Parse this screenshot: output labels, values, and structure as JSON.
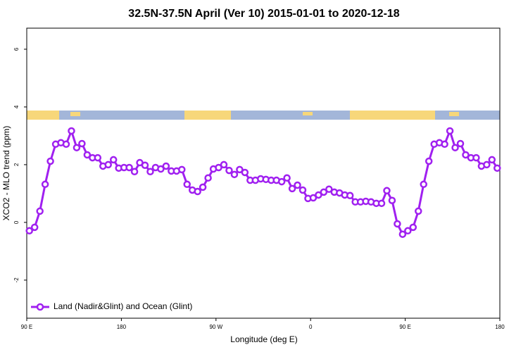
{
  "chart_data": {
    "type": "line",
    "title": "32.5N-37.5N April (Ver 10)   2015-01-01 to 2020-12-18",
    "x_label": "Longitude (deg E)",
    "y_label": "XCO2 - MLO trend (ppm)",
    "x": [
      92.5,
      97.5,
      102.5,
      107.5,
      112.5,
      117.5,
      122.5,
      127.5,
      132.5,
      137.5,
      142.5,
      147.5,
      152.5,
      157.5,
      162.5,
      167.5,
      172.5,
      177.5,
      182.5,
      187.5,
      192.5,
      197.5,
      202.5,
      207.5,
      212.5,
      217.5,
      222.5,
      227.5,
      232.5,
      237.5,
      242.5,
      247.5,
      252.5,
      257.5,
      262.5,
      267.5,
      272.5,
      277.5,
      282.5,
      287.5,
      292.5,
      297.5,
      302.5,
      307.5,
      312.5,
      317.5,
      322.5,
      327.5,
      332.5,
      337.5,
      342.5,
      347.5,
      352.5,
      357.5,
      362.5,
      367.5,
      372.5,
      377.5,
      382.5,
      387.5,
      392.5,
      397.5,
      402.5,
      407.5,
      412.5,
      417.5,
      422.5,
      427.5,
      432.5,
      437.5,
      442.5,
      447.5,
      452.5,
      457.5,
      462.5,
      467.5,
      472.5,
      477.5,
      482.5,
      487.5,
      492.5,
      497.5,
      502.5,
      507.5,
      512.5,
      517.5,
      522.5,
      527.5,
      532.5,
      537.5
    ],
    "series": [
      {
        "name": "Land (Nadir&Glint) and Ocean (Glint)",
        "color": "#a020f0",
        "values": [
          -0.29,
          -0.17,
          0.39,
          1.32,
          2.12,
          2.71,
          2.76,
          2.71,
          3.17,
          2.59,
          2.73,
          2.34,
          2.24,
          2.24,
          1.95,
          2.0,
          2.17,
          1.88,
          1.9,
          1.9,
          1.76,
          2.07,
          1.98,
          1.76,
          1.9,
          1.85,
          1.95,
          1.78,
          1.78,
          1.83,
          1.32,
          1.12,
          1.07,
          1.22,
          1.54,
          1.85,
          1.9,
          2.0,
          1.8,
          1.66,
          1.83,
          1.73,
          1.46,
          1.46,
          1.51,
          1.49,
          1.46,
          1.46,
          1.41,
          1.54,
          1.17,
          1.29,
          1.12,
          0.83,
          0.85,
          0.95,
          1.05,
          1.15,
          1.05,
          1.02,
          0.95,
          0.93,
          0.71,
          0.71,
          0.73,
          0.71,
          0.66,
          0.66,
          1.1,
          0.76,
          -0.05,
          -0.41,
          -0.29,
          -0.17,
          0.39,
          1.32,
          2.12,
          2.71,
          2.76,
          2.71,
          3.17,
          2.59,
          2.73,
          2.34,
          2.24,
          2.24,
          1.95,
          2.0,
          2.17,
          1.88
        ]
      }
    ],
    "xlim": [
      90,
      540
    ],
    "xticks": [
      {
        "value": 90,
        "label": "90 E"
      },
      180,
      {
        "value": 270,
        "label": "90 W"
      },
      {
        "value": 360,
        "label": "0"
      },
      {
        "value": 450,
        "label": "90 E"
      },
      180
    ],
    "ylim": [
      -3.32,
      6.73
    ],
    "yticks": [
      -2,
      0,
      2,
      4,
      6
    ],
    "legend": "bottom left"
  }
}
